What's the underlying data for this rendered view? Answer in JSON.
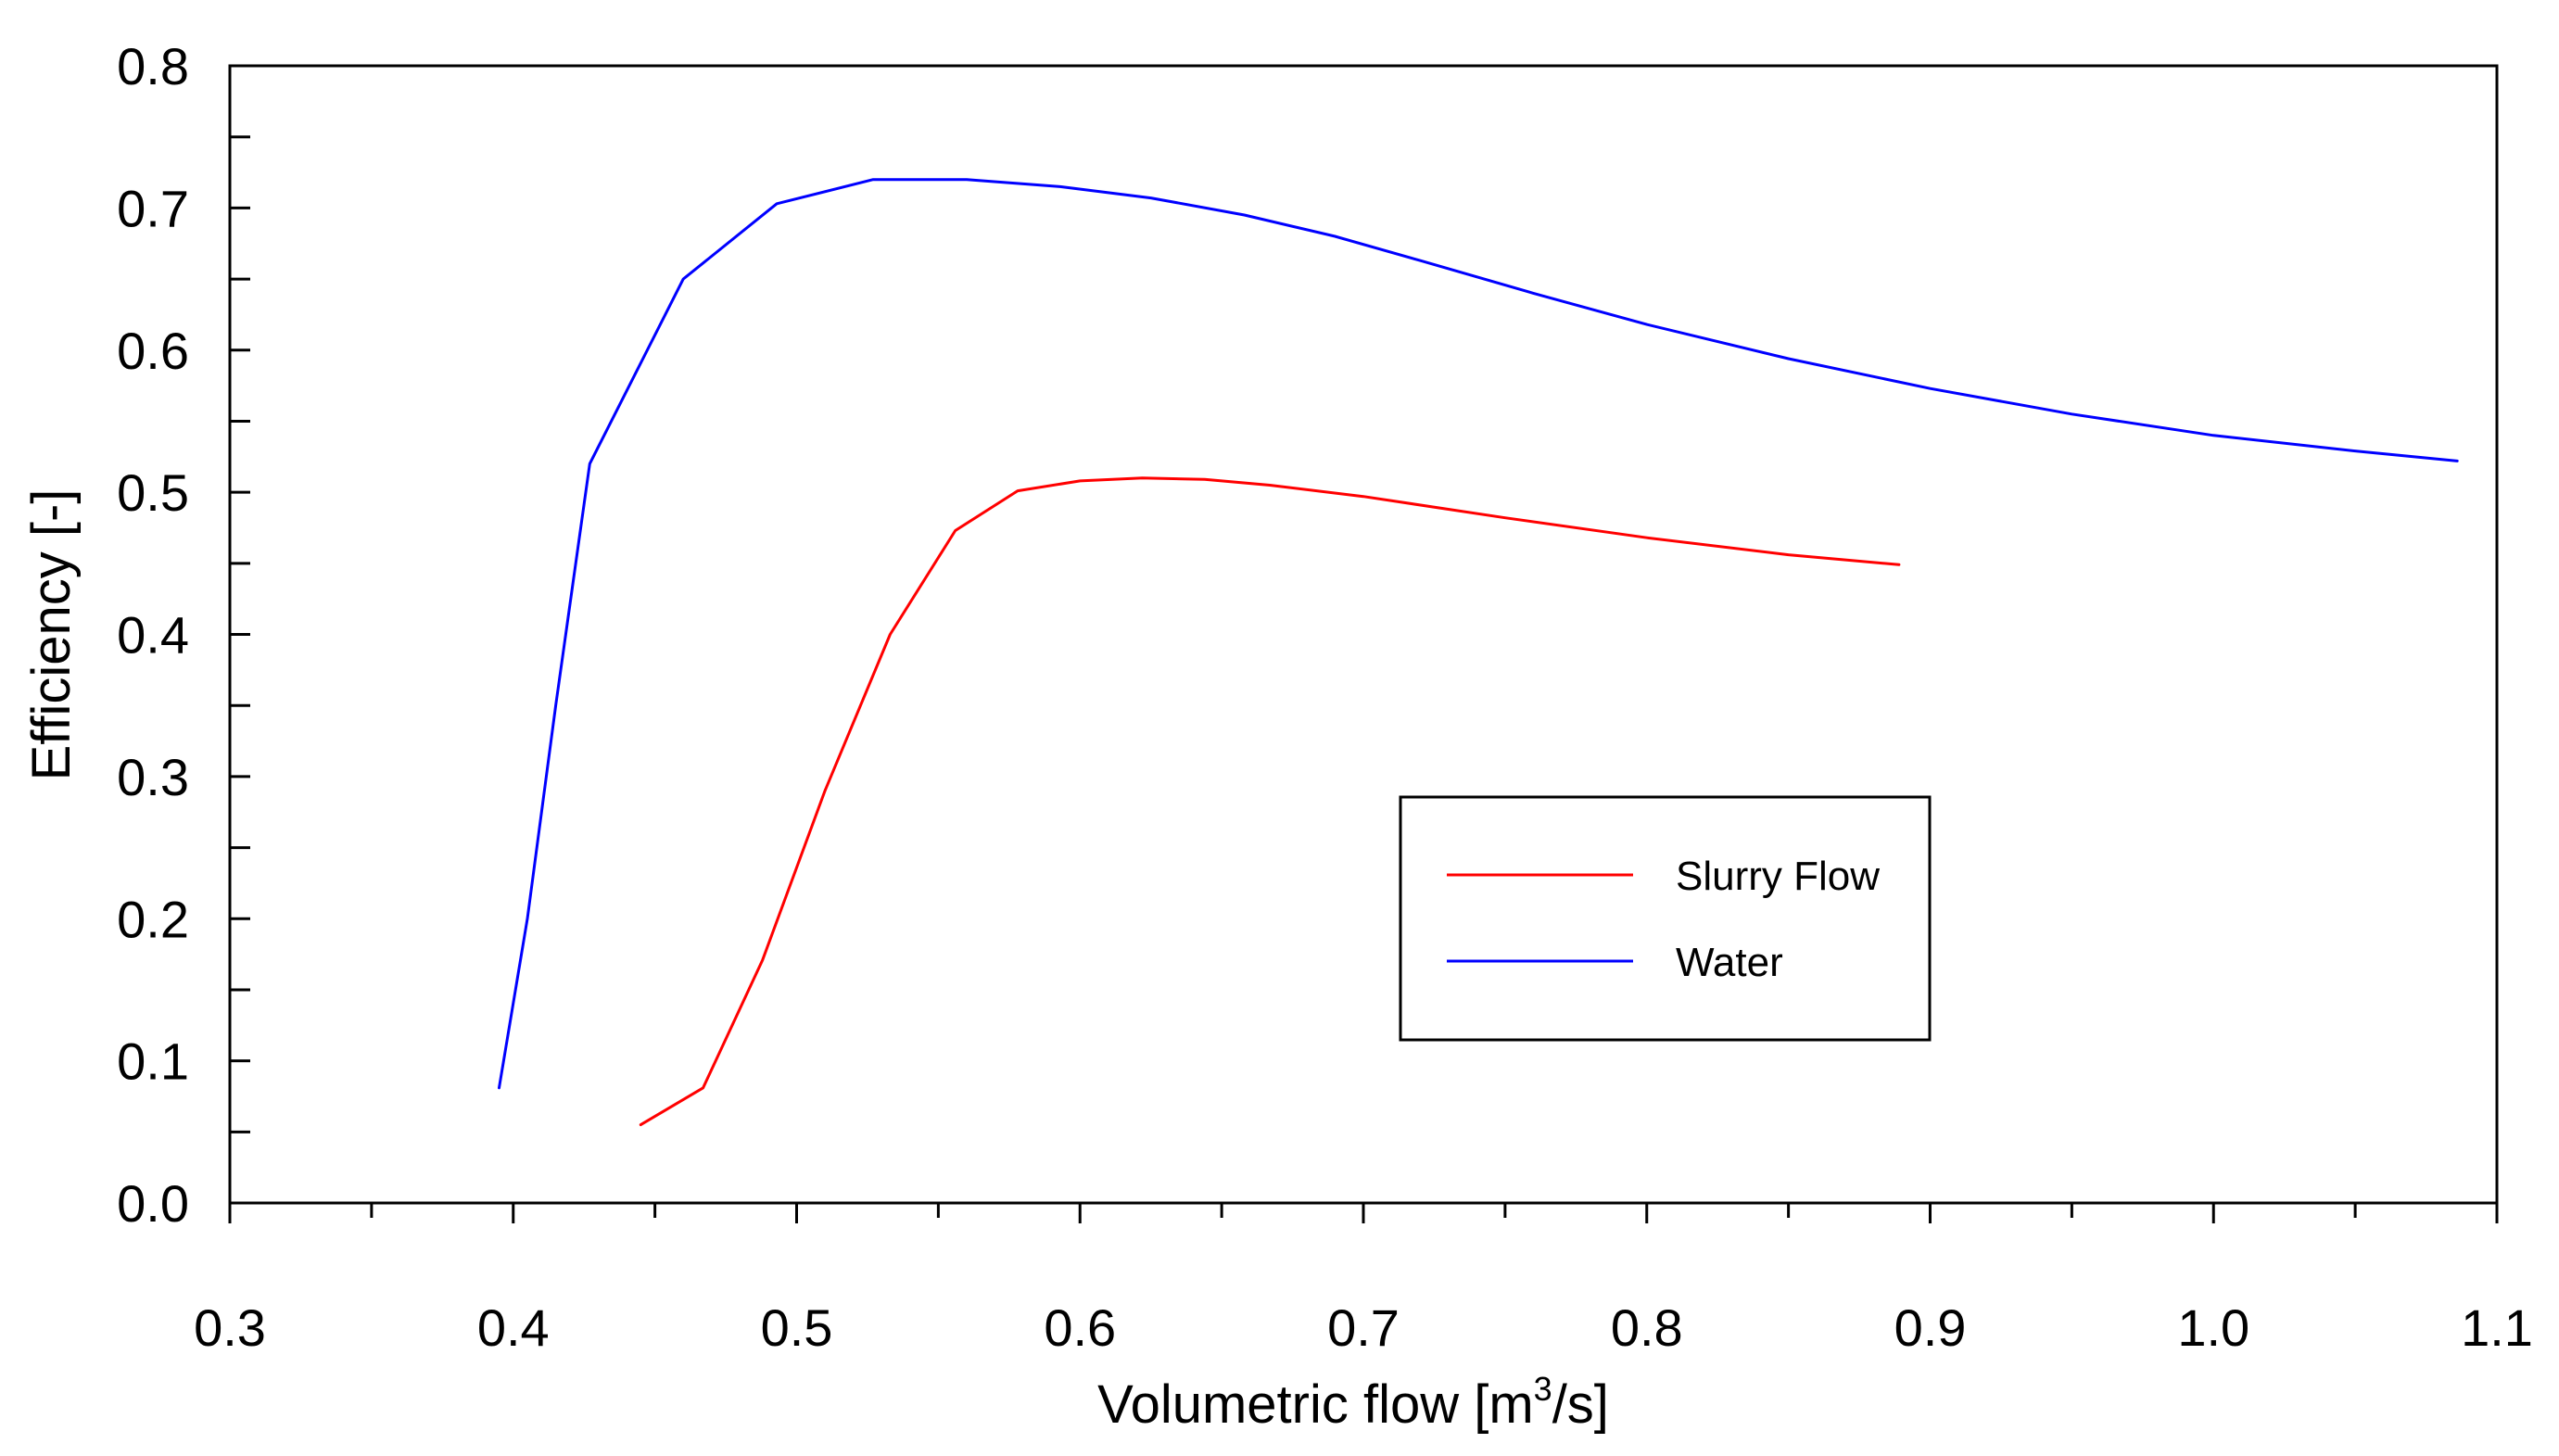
{
  "chart_data": {
    "type": "line",
    "title": "",
    "xlabel": "Volumetric flow [m³/s]",
    "xlabel_parts": {
      "before": "Volumetric flow [m",
      "sup": "3",
      "after": "/s]"
    },
    "ylabel": "Efficiency [-]",
    "xlim": [
      0.3,
      1.1
    ],
    "ylim": [
      0.0,
      0.8
    ],
    "x_ticks": [
      0.3,
      0.4,
      0.5,
      0.6,
      0.7,
      0.8,
      0.9,
      1.0,
      1.1
    ],
    "x_tick_labels": [
      "0.3",
      "0.4",
      "0.5",
      "0.6",
      "0.7",
      "0.8",
      "0.9",
      "1.0",
      "1.1"
    ],
    "x_minor_ticks": [
      0.35,
      0.45,
      0.55,
      0.65,
      0.75,
      0.85,
      0.95,
      1.05
    ],
    "y_ticks": [
      0.0,
      0.1,
      0.2,
      0.3,
      0.4,
      0.5,
      0.6,
      0.7,
      0.8
    ],
    "y_tick_labels": [
      "0.0",
      "0.1",
      "0.2",
      "0.3",
      "0.4",
      "0.5",
      "0.6",
      "0.7",
      "0.8"
    ],
    "y_minor_ticks": [
      0.05,
      0.15,
      0.25,
      0.35,
      0.45,
      0.55,
      0.65,
      0.75
    ],
    "grid": false,
    "legend_position": "center-right",
    "series": [
      {
        "name": "Slurry Flow",
        "color": "#ff0000",
        "x": [
          0.445,
          0.467,
          0.488,
          0.51,
          0.533,
          0.556,
          0.578,
          0.6,
          0.622,
          0.644,
          0.667,
          0.7,
          0.75,
          0.8,
          0.85,
          0.889
        ],
        "y": [
          0.055,
          0.081,
          0.171,
          0.29,
          0.4,
          0.473,
          0.501,
          0.508,
          0.51,
          0.509,
          0.505,
          0.497,
          0.482,
          0.468,
          0.456,
          0.449
        ]
      },
      {
        "name": "Water",
        "color": "#0000ff",
        "x": [
          0.395,
          0.405,
          0.415,
          0.427,
          0.46,
          0.493,
          0.527,
          0.56,
          0.593,
          0.625,
          0.658,
          0.69,
          0.72,
          0.76,
          0.8,
          0.85,
          0.9,
          0.95,
          1.0,
          1.05,
          1.086
        ],
        "y": [
          0.081,
          0.2,
          0.35,
          0.52,
          0.65,
          0.703,
          0.72,
          0.72,
          0.715,
          0.707,
          0.695,
          0.68,
          0.663,
          0.64,
          0.618,
          0.594,
          0.573,
          0.555,
          0.54,
          0.529,
          0.522
        ]
      }
    ]
  }
}
